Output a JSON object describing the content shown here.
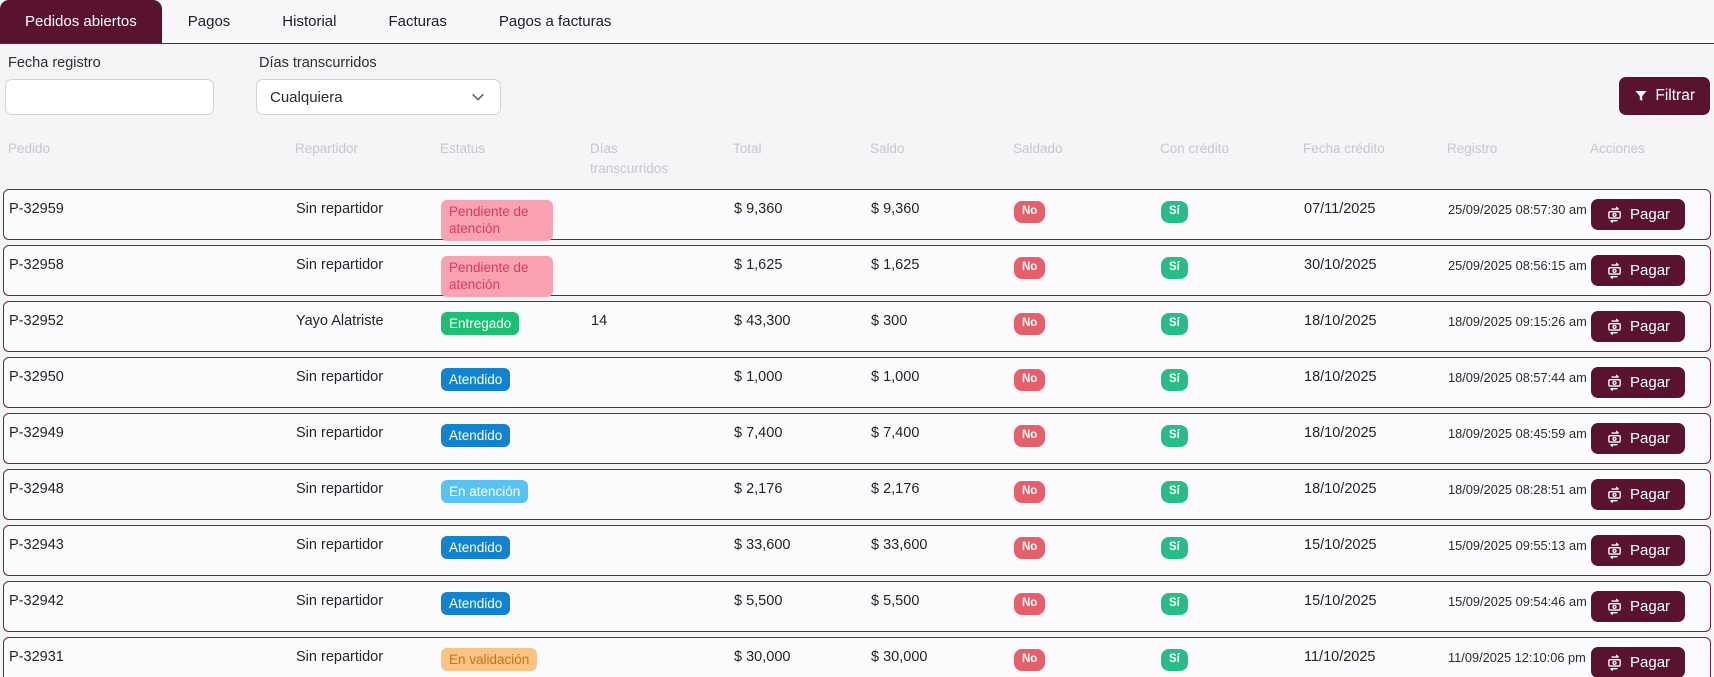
{
  "tabs": [
    {
      "label": "Pedidos abiertos",
      "active": true
    },
    {
      "label": "Pagos",
      "active": false
    },
    {
      "label": "Historial",
      "active": false
    },
    {
      "label": "Facturas",
      "active": false
    },
    {
      "label": "Pagos a facturas",
      "active": false
    }
  ],
  "filters": {
    "fecha_registro": {
      "label": "Fecha registro",
      "value": "",
      "placeholder": ""
    },
    "dias_transcurridos": {
      "label": "Días transcurridos",
      "selected_value": "Cualquiera"
    },
    "filter_button_label": "Filtrar"
  },
  "table": {
    "headers": [
      "Pedido",
      "Repartidor",
      "Estatus",
      "Días transcurridos",
      "Total",
      "Saldo",
      "Saldado",
      "Con crédito",
      "Fecha crédito",
      "Registro",
      "Acciones"
    ],
    "pay_button_label": "Pagar",
    "rows": [
      {
        "pedido": "P-32959",
        "repartidor": "Sin repartidor",
        "estatus": "Pendiente de atención",
        "estatus_type": "pendiente",
        "dias": "",
        "total": "$ 9,360",
        "saldo": "$ 9,360",
        "saldado": "No",
        "con_credito": "Sí",
        "fecha_credito": "07/11/2025",
        "registro": "25/09/2025 08:57:30 am"
      },
      {
        "pedido": "P-32958",
        "repartidor": "Sin repartidor",
        "estatus": "Pendiente de atención",
        "estatus_type": "pendiente",
        "dias": "",
        "total": "$ 1,625",
        "saldo": "$ 1,625",
        "saldado": "No",
        "con_credito": "Sí",
        "fecha_credito": "30/10/2025",
        "registro": "25/09/2025 08:56:15 am"
      },
      {
        "pedido": "P-32952",
        "repartidor": "Yayo Alatriste",
        "estatus": "Entregado",
        "estatus_type": "entregado",
        "dias": "14",
        "total": "$ 43,300",
        "saldo": "$ 300",
        "saldado": "No",
        "con_credito": "Sí",
        "fecha_credito": "18/10/2025",
        "registro": "18/09/2025 09:15:26 am"
      },
      {
        "pedido": "P-32950",
        "repartidor": "Sin repartidor",
        "estatus": "Atendido",
        "estatus_type": "atendido",
        "dias": "",
        "total": "$ 1,000",
        "saldo": "$ 1,000",
        "saldado": "No",
        "con_credito": "Sí",
        "fecha_credito": "18/10/2025",
        "registro": "18/09/2025 08:57:44 am"
      },
      {
        "pedido": "P-32949",
        "repartidor": "Sin repartidor",
        "estatus": "Atendido",
        "estatus_type": "atendido",
        "dias": "",
        "total": "$ 7,400",
        "saldo": "$ 7,400",
        "saldado": "No",
        "con_credito": "Sí",
        "fecha_credito": "18/10/2025",
        "registro": "18/09/2025 08:45:59 am"
      },
      {
        "pedido": "P-32948",
        "repartidor": "Sin repartidor",
        "estatus": "En atención",
        "estatus_type": "en_atencion",
        "dias": "",
        "total": "$ 2,176",
        "saldo": "$ 2,176",
        "saldado": "No",
        "con_credito": "Sí",
        "fecha_credito": "18/10/2025",
        "registro": "18/09/2025 08:28:51 am"
      },
      {
        "pedido": "P-32943",
        "repartidor": "Sin repartidor",
        "estatus": "Atendido",
        "estatus_type": "atendido",
        "dias": "",
        "total": "$ 33,600",
        "saldo": "$ 33,600",
        "saldado": "No",
        "con_credito": "Sí",
        "fecha_credito": "15/10/2025",
        "registro": "15/09/2025 09:55:13 am"
      },
      {
        "pedido": "P-32942",
        "repartidor": "Sin repartidor",
        "estatus": "Atendido",
        "estatus_type": "atendido",
        "dias": "",
        "total": "$ 5,500",
        "saldo": "$ 5,500",
        "saldado": "No",
        "con_credito": "Sí",
        "fecha_credito": "15/10/2025",
        "registro": "15/09/2025 09:54:46 am"
      },
      {
        "pedido": "P-32931",
        "repartidor": "Sin repartidor",
        "estatus": "En validación",
        "estatus_type": "validacion",
        "dias": "",
        "total": "$ 30,000",
        "saldo": "$ 30,000",
        "saldado": "No",
        "con_credito": "Sí",
        "fecha_credito": "11/10/2025",
        "registro": "11/09/2025 12:10:06 pm"
      }
    ]
  },
  "colors": {
    "accent": "#5a1231",
    "page_bg": "#f5f5f7",
    "row_bg": "#fbfbfd",
    "row_border": "#6e2240",
    "header_text": "#c6c6cb",
    "tab_underline": "#3a3a3e",
    "pill_no_bg": "#e5606b",
    "pill_si_bg": "#28bc86",
    "status": {
      "pendiente": {
        "bg": "#f9a2b2",
        "text": "#d93a5c"
      },
      "entregado": {
        "bg": "#1dbf73",
        "text": "#ffffff"
      },
      "atendido": {
        "bg": "#1283cf",
        "text": "#ffffff"
      },
      "en_atencion": {
        "bg": "#58c3f3",
        "text": "#ffffff"
      },
      "validacion": {
        "bg": "#f9c383",
        "text": "#c9720f"
      }
    }
  }
}
